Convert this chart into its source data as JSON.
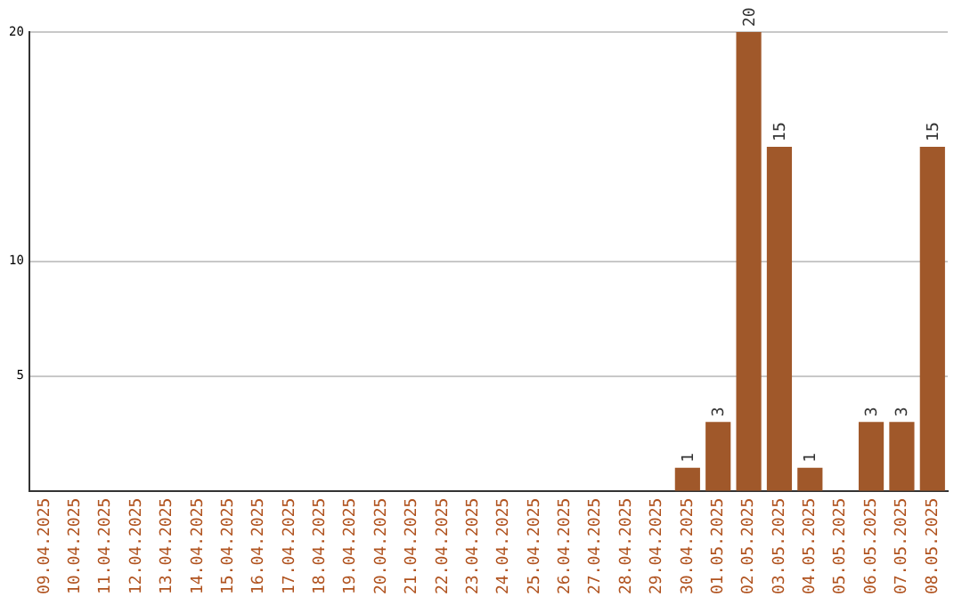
{
  "chart_data": {
    "type": "bar",
    "categories": [
      "09.04.2025",
      "10.04.2025",
      "11.04.2025",
      "12.04.2025",
      "13.04.2025",
      "14.04.2025",
      "15.04.2025",
      "16.04.2025",
      "17.04.2025",
      "18.04.2025",
      "19.04.2025",
      "20.04.2025",
      "21.04.2025",
      "22.04.2025",
      "23.04.2025",
      "24.04.2025",
      "25.04.2025",
      "26.04.2025",
      "27.04.2025",
      "28.04.2025",
      "29.04.2025",
      "30.04.2025",
      "01.05.2025",
      "02.05.2025",
      "03.05.2025",
      "04.05.2025",
      "05.05.2025",
      "06.05.2025",
      "07.05.2025",
      "08.05.2025"
    ],
    "values": [
      0,
      0,
      0,
      0,
      0,
      0,
      0,
      0,
      0,
      0,
      0,
      0,
      0,
      0,
      0,
      0,
      0,
      0,
      0,
      0,
      0,
      1,
      3,
      20,
      15,
      1,
      0,
      3,
      3,
      15
    ],
    "value_labels": [
      null,
      null,
      null,
      null,
      null,
      null,
      null,
      null,
      null,
      null,
      null,
      null,
      null,
      null,
      null,
      null,
      null,
      null,
      null,
      null,
      null,
      "1",
      "3",
      "20",
      "15",
      "1",
      null,
      "3",
      "3",
      "15"
    ],
    "color": "#a0582a",
    "ylim": [
      0,
      20
    ],
    "yticks": [
      5,
      10,
      20
    ],
    "grid": "y",
    "legend": false
  }
}
